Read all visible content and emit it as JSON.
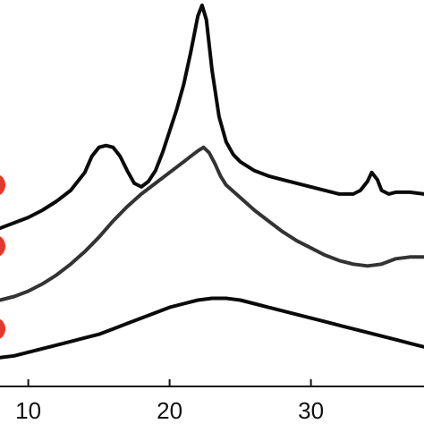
{
  "chart_data": {
    "type": "line",
    "xlim": [
      8,
      38
    ],
    "ylim": [
      0,
      10
    ],
    "xticks": [
      {
        "value": 10,
        "label": "10"
      },
      {
        "value": 20,
        "label": "20"
      },
      {
        "value": 30,
        "label": "30"
      }
    ],
    "grid": false,
    "legend": "none",
    "series": [
      {
        "color": "#0a0a0a",
        "x": [
          8,
          9,
          10,
          11,
          12,
          13,
          14,
          14.5,
          15,
          15.5,
          16,
          16.5,
          17,
          17.5,
          18,
          18.5,
          19,
          19.5,
          20,
          20.5,
          21,
          21.5,
          22,
          22.3,
          22.6,
          23,
          23.5,
          24,
          24.5,
          25,
          26,
          27,
          28,
          29,
          30,
          31,
          32,
          33,
          33.5,
          34,
          34.3,
          34.7,
          35,
          35.5,
          36,
          37,
          38
        ],
        "y": [
          4.4,
          4.55,
          4.7,
          4.9,
          5.15,
          5.45,
          5.95,
          6.4,
          6.65,
          6.7,
          6.65,
          6.4,
          6.0,
          5.65,
          5.55,
          5.7,
          6.0,
          6.5,
          7.1,
          7.7,
          8.4,
          9.3,
          10.3,
          10.6,
          10.2,
          8.8,
          7.5,
          6.8,
          6.45,
          6.25,
          6.0,
          5.85,
          5.75,
          5.65,
          5.55,
          5.45,
          5.35,
          5.35,
          5.45,
          5.7,
          5.95,
          5.75,
          5.45,
          5.35,
          5.4,
          5.4,
          5.35
        ]
      },
      {
        "color": "#333333",
        "x": [
          8,
          9,
          10,
          11,
          12,
          13,
          14,
          15,
          16,
          17,
          18,
          19,
          20,
          21,
          21.5,
          22,
          22.4,
          22.8,
          23.2,
          23.6,
          24,
          25,
          26,
          27,
          28,
          29,
          30,
          31,
          32,
          33,
          34,
          35,
          36,
          37,
          38
        ],
        "y": [
          2.4,
          2.5,
          2.65,
          2.85,
          3.1,
          3.4,
          3.75,
          4.15,
          4.6,
          5.0,
          5.35,
          5.65,
          5.95,
          6.25,
          6.4,
          6.55,
          6.65,
          6.5,
          6.2,
          5.85,
          5.6,
          5.25,
          4.9,
          4.6,
          4.3,
          4.05,
          3.85,
          3.65,
          3.5,
          3.4,
          3.35,
          3.4,
          3.55,
          3.6,
          3.6
        ]
      },
      {
        "color": "#0a0a0a",
        "x": [
          8,
          9,
          10,
          11,
          12,
          13,
          14,
          15,
          16,
          17,
          18,
          19,
          20,
          21,
          22,
          23,
          24,
          25,
          26,
          27,
          28,
          29,
          30,
          31,
          32,
          33,
          34,
          35,
          36,
          37,
          38
        ],
        "y": [
          0.8,
          0.85,
          0.95,
          1.05,
          1.15,
          1.25,
          1.35,
          1.45,
          1.6,
          1.75,
          1.9,
          2.05,
          2.2,
          2.3,
          2.4,
          2.45,
          2.45,
          2.4,
          2.3,
          2.2,
          2.1,
          2.0,
          1.9,
          1.8,
          1.7,
          1.6,
          1.5,
          1.4,
          1.3,
          1.2,
          1.1
        ]
      }
    ],
    "markers": {
      "color": "#e2392f",
      "y": [
        5.6,
        3.9,
        1.6
      ]
    }
  }
}
